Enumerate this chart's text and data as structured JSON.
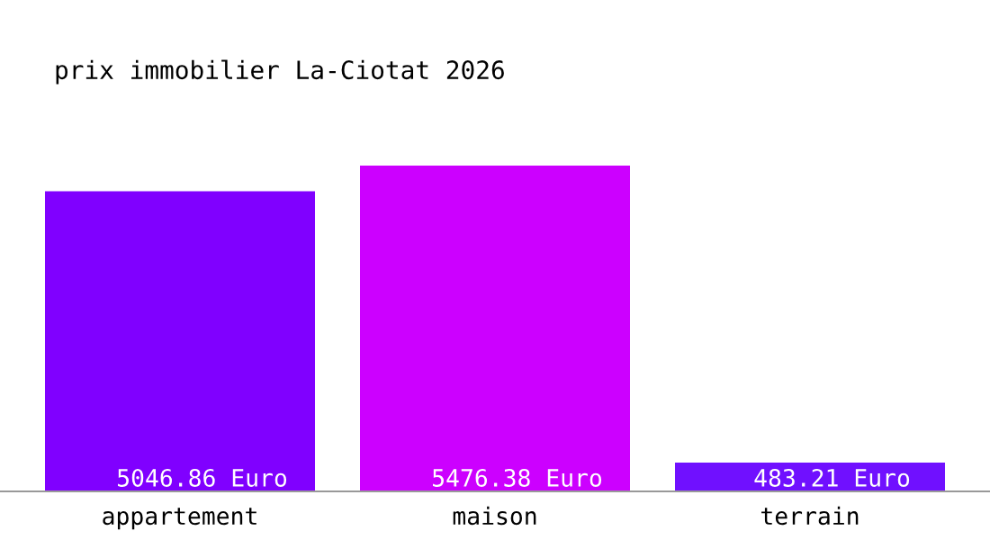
{
  "chart_data": {
    "type": "bar",
    "title": "prix immobilier La-Ciotat 2026",
    "categories": [
      "appartement",
      "maison",
      "terrain"
    ],
    "values": [
      5046.86,
      5476.38,
      483.21
    ],
    "colors": [
      "#8000ff",
      "#cc00ff",
      "#7010ff"
    ],
    "value_labels": [
      "5046.86 Euro",
      "5476.38 Euro",
      "483.21 Euro"
    ],
    "grid": false,
    "legend": false
  }
}
